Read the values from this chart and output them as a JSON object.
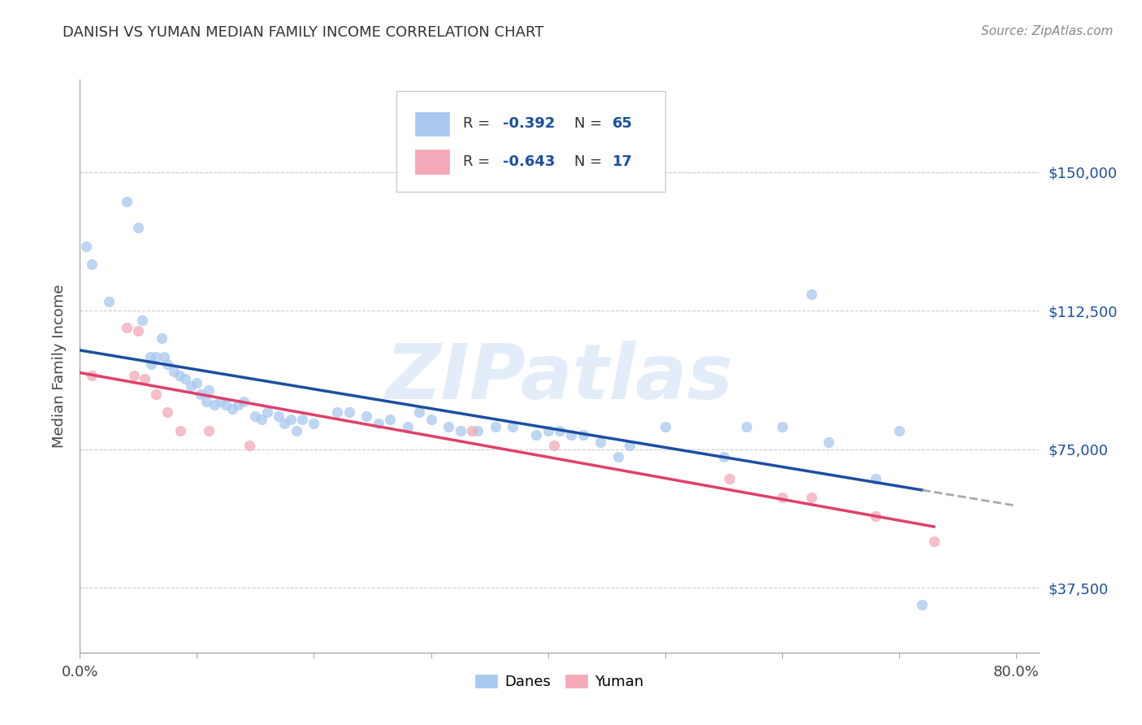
{
  "title": "DANISH VS YUMAN MEDIAN FAMILY INCOME CORRELATION CHART",
  "source": "Source: ZipAtlas.com",
  "ylabel": "Median Family Income",
  "ytick_vals": [
    37500,
    75000,
    112500,
    150000
  ],
  "ytick_labels": [
    "$37,500",
    "$75,000",
    "$112,500",
    "$150,000"
  ],
  "xlim": [
    0.0,
    0.82
  ],
  "ylim": [
    20000,
    175000
  ],
  "legend_r_danes": "-0.392",
  "legend_n_danes": "65",
  "legend_r_yuman": "-0.643",
  "legend_n_yuman": "17",
  "watermark": "ZIPatlas",
  "color_danes": "#a8c8f0",
  "color_yuman": "#f4a8b8",
  "color_trend_danes": "#1a4fa0",
  "color_trend_yuman": "#e0406a",
  "color_dashed": "#aaaaaa",
  "background_color": "#ffffff",
  "grid_color": "#cccccc",
  "danes_x": [
    0.005,
    0.01,
    0.025,
    0.04,
    0.05,
    0.053,
    0.06,
    0.061,
    0.065,
    0.07,
    0.072,
    0.075,
    0.08,
    0.085,
    0.09,
    0.095,
    0.1,
    0.103,
    0.108,
    0.11,
    0.115,
    0.12,
    0.125,
    0.13,
    0.135,
    0.14,
    0.15,
    0.155,
    0.16,
    0.17,
    0.175,
    0.18,
    0.185,
    0.19,
    0.2,
    0.22,
    0.23,
    0.245,
    0.255,
    0.265,
    0.28,
    0.29,
    0.3,
    0.315,
    0.325,
    0.34,
    0.355,
    0.37,
    0.39,
    0.4,
    0.41,
    0.42,
    0.43,
    0.445,
    0.46,
    0.47,
    0.5,
    0.55,
    0.57,
    0.6,
    0.625,
    0.64,
    0.68,
    0.7,
    0.72
  ],
  "danes_y": [
    130000,
    125000,
    115000,
    142000,
    135000,
    110000,
    100000,
    98000,
    100000,
    105000,
    100000,
    98000,
    96000,
    95000,
    94000,
    92000,
    93000,
    90000,
    88000,
    91000,
    87000,
    88000,
    87000,
    86000,
    87000,
    88000,
    84000,
    83000,
    85000,
    84000,
    82000,
    83000,
    80000,
    83000,
    82000,
    85000,
    85000,
    84000,
    82000,
    83000,
    81000,
    85000,
    83000,
    81000,
    80000,
    80000,
    81000,
    81000,
    79000,
    80000,
    80000,
    79000,
    79000,
    77000,
    73000,
    76000,
    81000,
    73000,
    81000,
    81000,
    117000,
    77000,
    67000,
    80000,
    33000
  ],
  "yuman_x": [
    0.01,
    0.04,
    0.046,
    0.05,
    0.055,
    0.065,
    0.075,
    0.086,
    0.11,
    0.145,
    0.335,
    0.405,
    0.555,
    0.6,
    0.625,
    0.68,
    0.73
  ],
  "yuman_y": [
    95000,
    108000,
    95000,
    107000,
    94000,
    90000,
    85000,
    80000,
    80000,
    76000,
    80000,
    76000,
    67000,
    62000,
    62000,
    57000,
    50000
  ]
}
